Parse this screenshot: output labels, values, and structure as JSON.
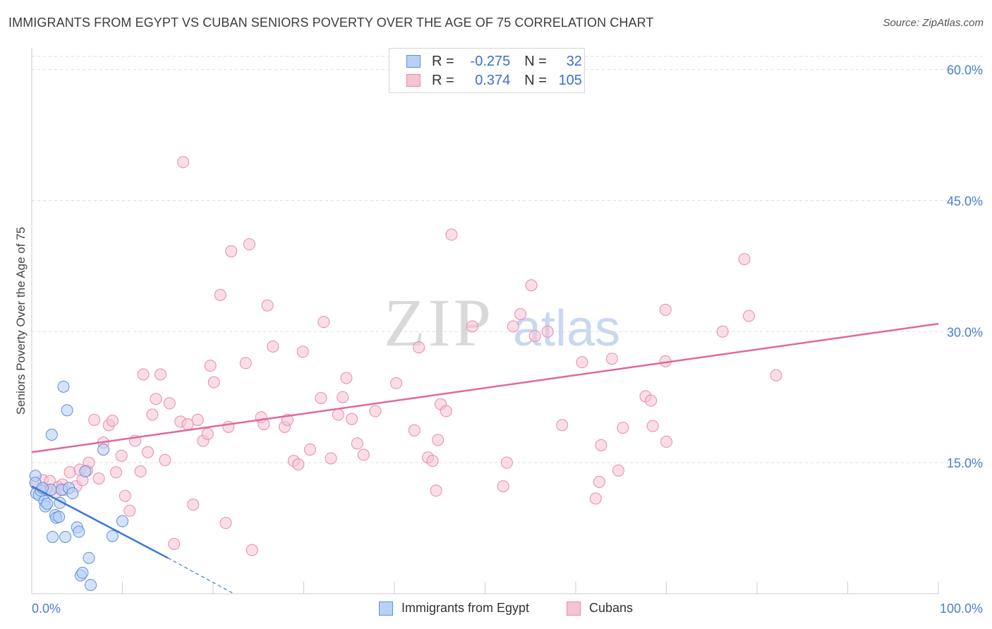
{
  "title": "IMMIGRANTS FROM EGYPT VS CUBAN SENIORS POVERTY OVER THE AGE OF 75 CORRELATION CHART",
  "source": "Source: ZipAtlas.com",
  "watermark": {
    "zip": "ZIP",
    "atlas": "atlas"
  },
  "legend_top": {
    "rows": [
      {
        "r_label": "R =",
        "r_value": "-0.275",
        "n_label": "N =",
        "n_value": "32"
      },
      {
        "r_label": "R =",
        "r_value": "0.374",
        "n_label": "N =",
        "n_value": "105"
      }
    ]
  },
  "colors": {
    "egypt_fill": "#b9d0f5",
    "egypt_stroke": "#5b8fdc",
    "egypt_line": "#3a78d4",
    "cuban_fill": "#f6c3d3",
    "cuban_stroke": "#e88aaa",
    "cuban_line": "#e0689a",
    "tick_label": "#4a7fd0",
    "grid": "#dddddd"
  },
  "chart_data": {
    "type": "scatter",
    "title": "IMMIGRANTS FROM EGYPT VS CUBAN SENIORS POVERTY OVER THE AGE OF 75 CORRELATION CHART",
    "xlabel": "",
    "ylabel": "Seniors Poverty Over the Age of 75",
    "xlim": [
      0,
      100
    ],
    "ylim": [
      0,
      60
    ],
    "x_tick_labels": [
      {
        "value": 0,
        "label": "0.0%"
      },
      {
        "value": 100,
        "label": "100.0%"
      }
    ],
    "y_tick_labels": [
      {
        "value": 15,
        "label": "15.0%"
      },
      {
        "value": 30,
        "label": "30.0%"
      },
      {
        "value": 45,
        "label": "45.0%"
      },
      {
        "value": 60,
        "label": "60.0%"
      }
    ],
    "grid": "horizontal dashed",
    "legend_position": "bottom",
    "series": [
      {
        "name": "Immigrants from Egypt",
        "points": [
          [
            0.4,
            13.5
          ],
          [
            0.4,
            12.7
          ],
          [
            0.5,
            11.5
          ],
          [
            0.8,
            11.3
          ],
          [
            1.0,
            11.8
          ],
          [
            1.4,
            10.6
          ],
          [
            1.5,
            10.0
          ],
          [
            1.7,
            10.3
          ],
          [
            2.1,
            11.9
          ],
          [
            2.2,
            18.2
          ],
          [
            2.3,
            6.5
          ],
          [
            2.6,
            9.0
          ],
          [
            2.7,
            8.7
          ],
          [
            3.0,
            8.8
          ],
          [
            3.1,
            10.4
          ],
          [
            3.3,
            11.9
          ],
          [
            3.5,
            23.7
          ],
          [
            3.7,
            6.5
          ],
          [
            3.9,
            21.0
          ],
          [
            4.1,
            12.1
          ],
          [
            4.5,
            11.5
          ],
          [
            5.0,
            7.6
          ],
          [
            5.2,
            7.1
          ],
          [
            5.4,
            2.1
          ],
          [
            5.6,
            2.4
          ],
          [
            5.9,
            14.0
          ],
          [
            6.3,
            4.1
          ],
          [
            6.5,
            1.0
          ],
          [
            7.9,
            16.5
          ],
          [
            8.9,
            6.6
          ],
          [
            10.0,
            8.3
          ],
          [
            1.2,
            12.1
          ]
        ],
        "trend": {
          "x": [
            0,
            15
          ],
          "y": [
            12.3,
            4.1
          ],
          "dashed_extension": {
            "x": [
              15,
              22.3
            ],
            "y": [
              4.1,
              0
            ]
          }
        }
      },
      {
        "name": "Cubans",
        "points": [
          [
            0.5,
            12.5
          ],
          [
            1.2,
            13.0
          ],
          [
            1.6,
            11.9
          ],
          [
            2.0,
            12.9
          ],
          [
            2.6,
            11.5
          ],
          [
            2.9,
            12.2
          ],
          [
            3.4,
            12.5
          ],
          [
            3.6,
            11.9
          ],
          [
            4.2,
            13.9
          ],
          [
            4.9,
            12.3
          ],
          [
            5.3,
            14.2
          ],
          [
            5.6,
            13.0
          ],
          [
            6.1,
            14.1
          ],
          [
            6.3,
            15.0
          ],
          [
            6.9,
            19.9
          ],
          [
            7.4,
            13.2
          ],
          [
            7.9,
            17.3
          ],
          [
            8.5,
            19.3
          ],
          [
            8.9,
            19.8
          ],
          [
            9.3,
            13.9
          ],
          [
            9.9,
            15.8
          ],
          [
            10.3,
            11.2
          ],
          [
            10.8,
            9.5
          ],
          [
            11.4,
            17.5
          ],
          [
            12.0,
            14.0
          ],
          [
            12.3,
            25.1
          ],
          [
            12.8,
            16.2
          ],
          [
            13.3,
            20.5
          ],
          [
            13.7,
            22.3
          ],
          [
            14.2,
            25.1
          ],
          [
            14.7,
            15.3
          ],
          [
            15.2,
            21.8
          ],
          [
            15.7,
            5.7
          ],
          [
            16.4,
            19.7
          ],
          [
            16.7,
            49.4
          ],
          [
            17.2,
            19.4
          ],
          [
            17.8,
            10.2
          ],
          [
            18.3,
            19.9
          ],
          [
            18.9,
            17.5
          ],
          [
            19.4,
            18.3
          ],
          [
            19.7,
            26.1
          ],
          [
            20.1,
            24.2
          ],
          [
            20.8,
            34.2
          ],
          [
            21.4,
            8.1
          ],
          [
            21.7,
            19.1
          ],
          [
            22.0,
            39.2
          ],
          [
            23.6,
            26.4
          ],
          [
            24.0,
            40.0
          ],
          [
            24.3,
            5.0
          ],
          [
            25.3,
            20.2
          ],
          [
            25.6,
            19.4
          ],
          [
            26.0,
            33.0
          ],
          [
            26.6,
            28.3
          ],
          [
            27.9,
            19.1
          ],
          [
            28.2,
            19.9
          ],
          [
            28.9,
            15.2
          ],
          [
            29.4,
            14.8
          ],
          [
            29.9,
            27.7
          ],
          [
            30.7,
            16.5
          ],
          [
            31.9,
            22.4
          ],
          [
            32.2,
            31.1
          ],
          [
            33.0,
            15.5
          ],
          [
            33.8,
            20.5
          ],
          [
            34.3,
            22.5
          ],
          [
            34.7,
            24.7
          ],
          [
            35.3,
            20.0
          ],
          [
            35.9,
            17.2
          ],
          [
            36.6,
            15.9
          ],
          [
            37.9,
            20.9
          ],
          [
            40.2,
            24.1
          ],
          [
            42.7,
            28.2
          ],
          [
            42.2,
            18.7
          ],
          [
            43.7,
            15.6
          ],
          [
            44.2,
            15.2
          ],
          [
            44.6,
            11.8
          ],
          [
            44.8,
            17.6
          ],
          [
            45.1,
            21.7
          ],
          [
            45.7,
            20.9
          ],
          [
            46.3,
            41.1
          ],
          [
            48.6,
            30.6
          ],
          [
            52.0,
            12.3
          ],
          [
            52.4,
            15.0
          ],
          [
            53.1,
            30.6
          ],
          [
            53.9,
            32.0
          ],
          [
            55.1,
            35.3
          ],
          [
            55.5,
            29.5
          ],
          [
            56.9,
            30.0
          ],
          [
            58.5,
            19.3
          ],
          [
            60.7,
            26.5
          ],
          [
            62.2,
            10.9
          ],
          [
            62.6,
            12.8
          ],
          [
            62.8,
            17.0
          ],
          [
            64.0,
            26.9
          ],
          [
            64.7,
            14.1
          ],
          [
            65.2,
            19.0
          ],
          [
            67.7,
            22.6
          ],
          [
            68.3,
            22.1
          ],
          [
            68.5,
            19.2
          ],
          [
            70.0,
            17.4
          ],
          [
            69.9,
            26.6
          ],
          [
            69.9,
            32.5
          ],
          [
            76.2,
            30.0
          ],
          [
            78.6,
            38.3
          ],
          [
            79.1,
            31.8
          ],
          [
            82.1,
            25.0
          ]
        ],
        "trend": {
          "x": [
            0,
            100
          ],
          "y": [
            16.2,
            30.9
          ]
        }
      }
    ]
  },
  "axis_title_y": "Seniors Poverty Over the Age of 75",
  "bottom_legend": {
    "egypt": "Immigrants from Egypt",
    "cubans": "Cubans"
  }
}
